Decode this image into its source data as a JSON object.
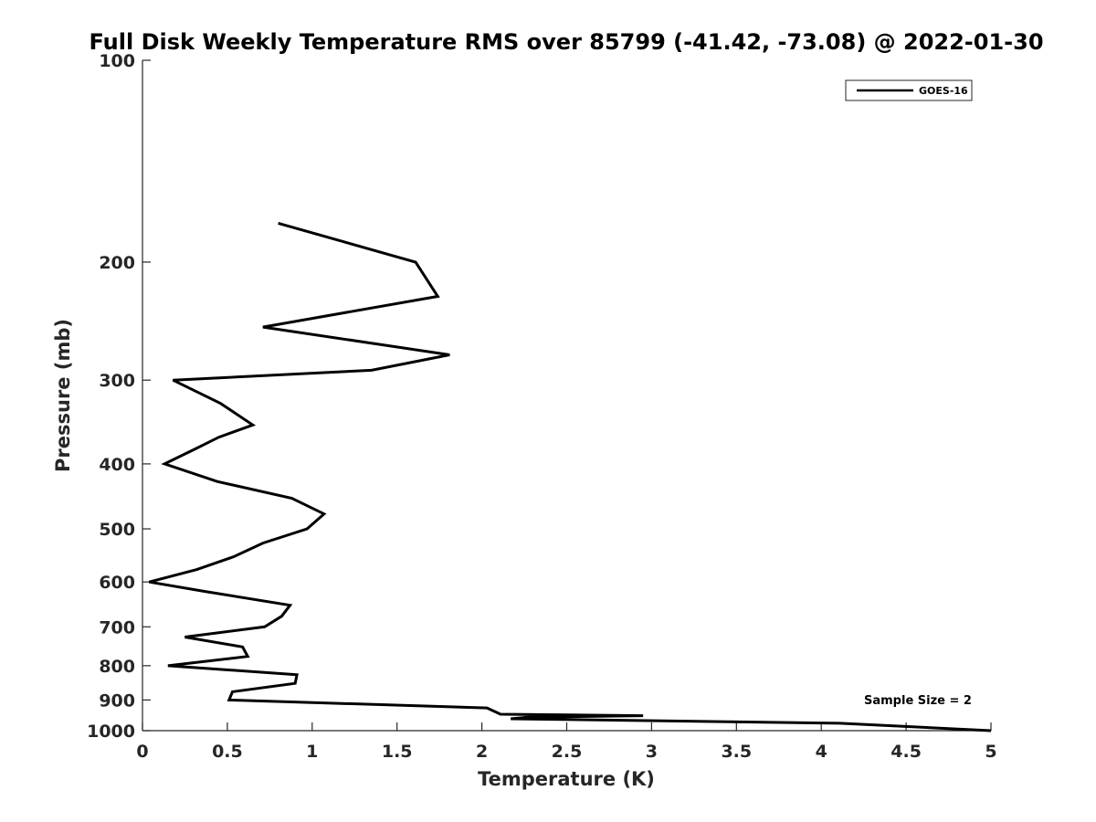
{
  "chart_data": {
    "type": "line",
    "title": "Full Disk Weekly Temperature RMS over 85799 (-41.42, -73.08) @ 2022-01-30",
    "xlabel": "Temperature (K)",
    "ylabel": "Pressure (mb)",
    "xlim": [
      0,
      5
    ],
    "ylim": [
      100,
      1000
    ],
    "y_scale": "log",
    "y_reversed": true,
    "x_ticks": [
      0,
      0.5,
      1,
      1.5,
      2,
      2.5,
      3,
      3.5,
      4,
      4.5,
      5
    ],
    "x_tick_labels": [
      "0",
      "0.5",
      "1",
      "1.5",
      "2",
      "2.5",
      "3",
      "3.5",
      "4",
      "4.5",
      "5"
    ],
    "y_ticks": [
      100,
      200,
      300,
      400,
      500,
      600,
      700,
      800,
      900,
      1000
    ],
    "y_tick_labels": [
      "100",
      "200",
      "300",
      "400",
      "500",
      "600",
      "700",
      "800",
      "900",
      "1000"
    ],
    "grid": false,
    "legend_position": "top-right",
    "annotation": "Sample Size = 2",
    "series": [
      {
        "name": "GOES-16",
        "color": "#000000",
        "x": [
          0.8,
          1.61,
          1.74,
          0.71,
          1.81,
          1.35,
          0.18,
          0.46,
          0.65,
          0.45,
          0.31,
          0.13,
          0.44,
          0.88,
          1.07,
          0.97,
          0.71,
          0.54,
          0.32,
          0.04,
          0.37,
          0.87,
          0.82,
          0.72,
          0.25,
          0.59,
          0.62,
          0.15,
          0.91,
          0.9,
          0.53,
          0.51,
          2.03,
          2.11,
          2.95,
          2.27,
          2.17,
          4.11,
          5.0
        ],
        "y": [
          175,
          200,
          225,
          250,
          275,
          290,
          300,
          325,
          350,
          365,
          380,
          400,
          425,
          450,
          475,
          500,
          525,
          550,
          575,
          600,
          620,
          650,
          675,
          700,
          725,
          750,
          775,
          800,
          825,
          850,
          875,
          900,
          925,
          945,
          950,
          955,
          960,
          975,
          1000
        ]
      }
    ]
  }
}
